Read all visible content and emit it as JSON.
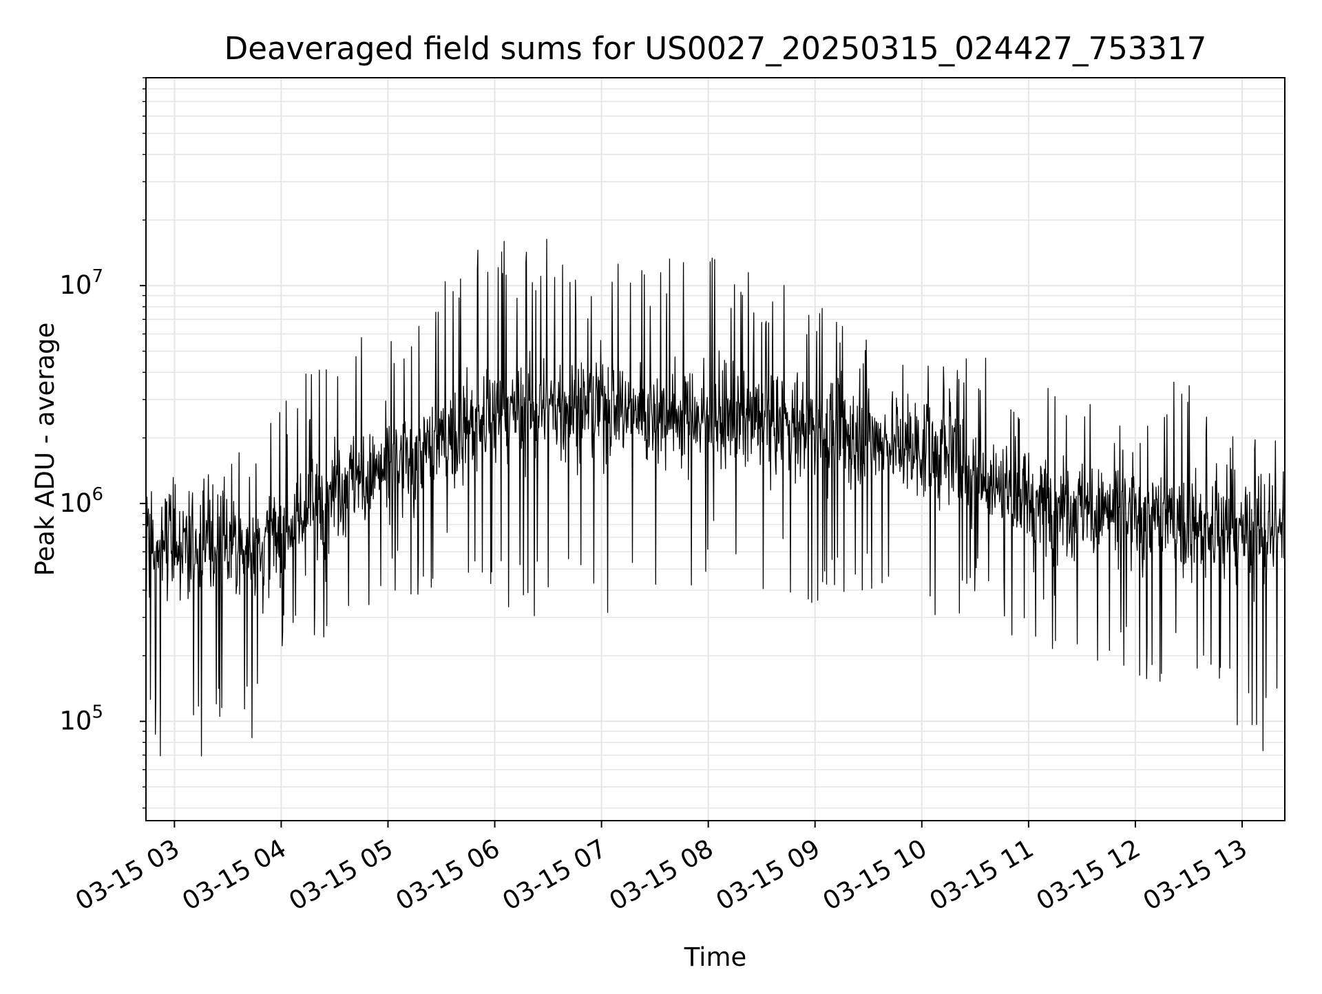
{
  "chart_data": {
    "type": "line",
    "title": "Deaveraged field sums for US0027_20250315_024427_753317",
    "xlabel": "Time",
    "ylabel": "Peak ADU - average",
    "x_ticks": [
      "03-15 03",
      "03-15 04",
      "03-15 05",
      "03-15 06",
      "03-15 07",
      "03-15 08",
      "03-15 09",
      "03-15 10",
      "03-15 11",
      "03-15 12",
      "03-15 13"
    ],
    "x_range": [
      "2025-03-15 02:44",
      "2025-03-15 13:24"
    ],
    "y_scale": "log",
    "y_ticks": [
      {
        "value": 100000,
        "base": "10",
        "exp": "5"
      },
      {
        "value": 1000000,
        "base": "10",
        "exp": "6"
      },
      {
        "value": 10000000,
        "base": "10",
        "exp": "7"
      }
    ],
    "ylim": [
      35000,
      90000000
    ],
    "grid": true,
    "line_color": "#000000",
    "grid_color": "#e6e6e6",
    "series": [
      {
        "x": [
          "2025-03-15 02:44",
          "2025-03-15 02:55",
          "2025-03-15 03:05",
          "2025-03-15 03:15",
          "2025-03-15 03:25",
          "2025-03-15 03:35",
          "2025-03-15 03:45",
          "2025-03-15 04:00",
          "2025-03-15 04:15",
          "2025-03-15 04:30",
          "2025-03-15 04:45",
          "2025-03-15 05:00",
          "2025-03-15 05:15",
          "2025-03-15 05:30",
          "2025-03-15 05:45",
          "2025-03-15 06:00",
          "2025-03-15 06:15",
          "2025-03-15 06:30",
          "2025-03-15 06:45",
          "2025-03-15 07:00",
          "2025-03-15 07:15",
          "2025-03-15 07:30",
          "2025-03-15 07:45",
          "2025-03-15 08:00",
          "2025-03-15 08:15",
          "2025-03-15 08:30",
          "2025-03-15 08:45",
          "2025-03-15 09:00",
          "2025-03-15 09:15",
          "2025-03-15 09:30",
          "2025-03-15 09:45",
          "2025-03-15 10:00",
          "2025-03-15 10:15",
          "2025-03-15 10:30",
          "2025-03-15 10:45",
          "2025-03-15 11:00",
          "2025-03-15 11:15",
          "2025-03-15 11:30",
          "2025-03-15 11:45",
          "2025-03-15 12:00",
          "2025-03-15 12:15",
          "2025-03-15 12:30",
          "2025-03-15 12:45",
          "2025-03-15 13:00",
          "2025-03-15 13:15",
          "2025-03-15 13:24"
        ],
        "center": [
          700000,
          650000,
          600000,
          550000,
          600000,
          650000,
          600000,
          700000,
          900000,
          1200000,
          1300000,
          1400000,
          1600000,
          1900000,
          2300000,
          2500000,
          2600000,
          2700000,
          2800000,
          2800000,
          2700000,
          2600000,
          2600000,
          2500000,
          2400000,
          2400000,
          2300000,
          2200000,
          2100000,
          2000000,
          1900000,
          1800000,
          1600000,
          1400000,
          1200000,
          1100000,
          1000000,
          950000,
          900000,
          850000,
          850000,
          800000,
          750000,
          700000,
          700000,
          700000
        ],
        "low": [
          100000,
          60000,
          70000,
          60000,
          90000,
          70000,
          80000,
          130000,
          200000,
          250000,
          300000,
          350000,
          350000,
          400000,
          350000,
          300000,
          300000,
          300000,
          300000,
          300000,
          350000,
          400000,
          350000,
          450000,
          450000,
          400000,
          350000,
          350000,
          300000,
          300000,
          300000,
          300000,
          300000,
          300000,
          250000,
          220000,
          200000,
          180000,
          170000,
          150000,
          140000,
          130000,
          120000,
          80000,
          70000,
          150000
        ],
        "high": [
          1600000,
          1400000,
          1300000,
          1300000,
          1500000,
          1700000,
          1800000,
          3500000,
          4000000,
          5000000,
          6500000,
          7000000,
          8000000,
          10000000,
          18000000,
          19000000,
          14000000,
          17000000,
          12000000,
          13000000,
          17000000,
          13000000,
          16000000,
          14000000,
          12000000,
          11000000,
          10000000,
          9500000,
          8000000,
          7000000,
          6000000,
          5500000,
          5000000,
          4800000,
          4500000,
          4000000,
          3500000,
          3300000,
          3000000,
          2800000,
          3000000,
          5000000,
          2500000,
          2000000,
          2000000,
          2000000
        ]
      }
    ]
  }
}
